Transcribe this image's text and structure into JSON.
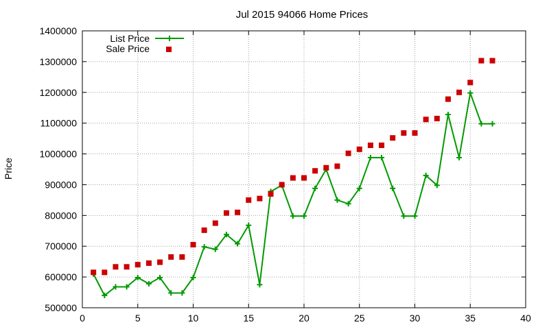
{
  "chart_data": {
    "type": "line",
    "title": "Jul 2015 94066 Home Prices",
    "xlabel": "",
    "ylabel": "Price",
    "xlim": [
      0,
      40
    ],
    "ylim": [
      500000,
      1400000
    ],
    "xticks": [
      0,
      5,
      10,
      15,
      20,
      25,
      30,
      35,
      40
    ],
    "yticks": [
      500000,
      600000,
      700000,
      800000,
      900000,
      1000000,
      1100000,
      1200000,
      1300000,
      1400000
    ],
    "xtick_labels": [
      "0",
      "5",
      "10",
      "15",
      "20",
      "25",
      "30",
      "35",
      "40"
    ],
    "ytick_labels": [
      "500000",
      "600000",
      "700000",
      "800000",
      "900000",
      "1000000",
      "1100000",
      "1200000",
      "1300000",
      "1400000"
    ],
    "grid": true,
    "legend_position": "top-left",
    "x": [
      1,
      2,
      3,
      4,
      5,
      6,
      7,
      8,
      9,
      10,
      11,
      12,
      13,
      14,
      15,
      16,
      17,
      18,
      19,
      20,
      21,
      22,
      23,
      24,
      25,
      26,
      27,
      28,
      29,
      30,
      31,
      32,
      33,
      34,
      35,
      36,
      37
    ],
    "series": [
      {
        "name": "List Price",
        "style": "linespoints",
        "marker": "plus",
        "color": "#009900",
        "values": [
          610000,
          540000,
          568000,
          568000,
          598000,
          578000,
          598000,
          548000,
          548000,
          598000,
          698000,
          690000,
          738000,
          708000,
          768000,
          575000,
          878000,
          898000,
          798000,
          798000,
          888000,
          950000,
          850000,
          838000,
          888000,
          988000,
          988000,
          888000,
          798000,
          798000,
          930000,
          898000,
          1128000,
          988000,
          1198000,
          1098000,
          1098000
        ]
      },
      {
        "name": "Sale Price",
        "style": "points",
        "marker": "square",
        "color": "#cc0000",
        "values": [
          615000,
          615000,
          633000,
          633000,
          640000,
          645000,
          648000,
          665000,
          665000,
          705000,
          752000,
          775000,
          808000,
          810000,
          850000,
          855000,
          870000,
          900000,
          922000,
          922000,
          945000,
          955000,
          960000,
          1002000,
          1015000,
          1028000,
          1028000,
          1052000,
          1068000,
          1068000,
          1112000,
          1115000,
          1178000,
          1200000,
          1232000,
          1303000,
          1303000
        ]
      }
    ]
  }
}
